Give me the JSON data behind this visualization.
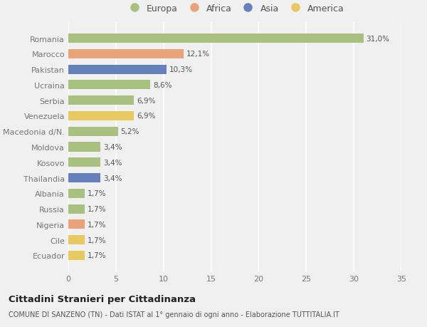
{
  "countries": [
    "Romania",
    "Marocco",
    "Pakistan",
    "Ucraina",
    "Serbia",
    "Venezuela",
    "Macedonia d/N.",
    "Moldova",
    "Kosovo",
    "Thailandia",
    "Albania",
    "Russia",
    "Nigeria",
    "Cile",
    "Ecuador"
  ],
  "values": [
    31.0,
    12.1,
    10.3,
    8.6,
    6.9,
    6.9,
    5.2,
    3.4,
    3.4,
    3.4,
    1.7,
    1.7,
    1.7,
    1.7,
    1.7
  ],
  "labels": [
    "31,0%",
    "12,1%",
    "10,3%",
    "8,6%",
    "6,9%",
    "6,9%",
    "5,2%",
    "3,4%",
    "3,4%",
    "3,4%",
    "1,7%",
    "1,7%",
    "1,7%",
    "1,7%",
    "1,7%"
  ],
  "continents": [
    "Europa",
    "Africa",
    "Asia",
    "Europa",
    "Europa",
    "America",
    "Europa",
    "Europa",
    "Europa",
    "Asia",
    "Europa",
    "Europa",
    "Africa",
    "America",
    "America"
  ],
  "colors": {
    "Europa": "#a8c080",
    "Africa": "#e8a478",
    "Asia": "#6680bb",
    "America": "#e8c860"
  },
  "xlim": [
    0,
    35
  ],
  "xticks": [
    0,
    5,
    10,
    15,
    20,
    25,
    30,
    35
  ],
  "title": "Cittadini Stranieri per Cittadinanza",
  "subtitle": "COMUNE DI SANZENO (TN) - Dati ISTAT al 1° gennaio di ogni anno - Elaborazione TUTTITALIA.IT",
  "bg_color": "#f0f0f0",
  "plot_bg_color": "#f0f0f0",
  "grid_color": "#ffffff",
  "bar_height": 0.6,
  "legend_order": [
    "Europa",
    "Africa",
    "Asia",
    "America"
  ]
}
